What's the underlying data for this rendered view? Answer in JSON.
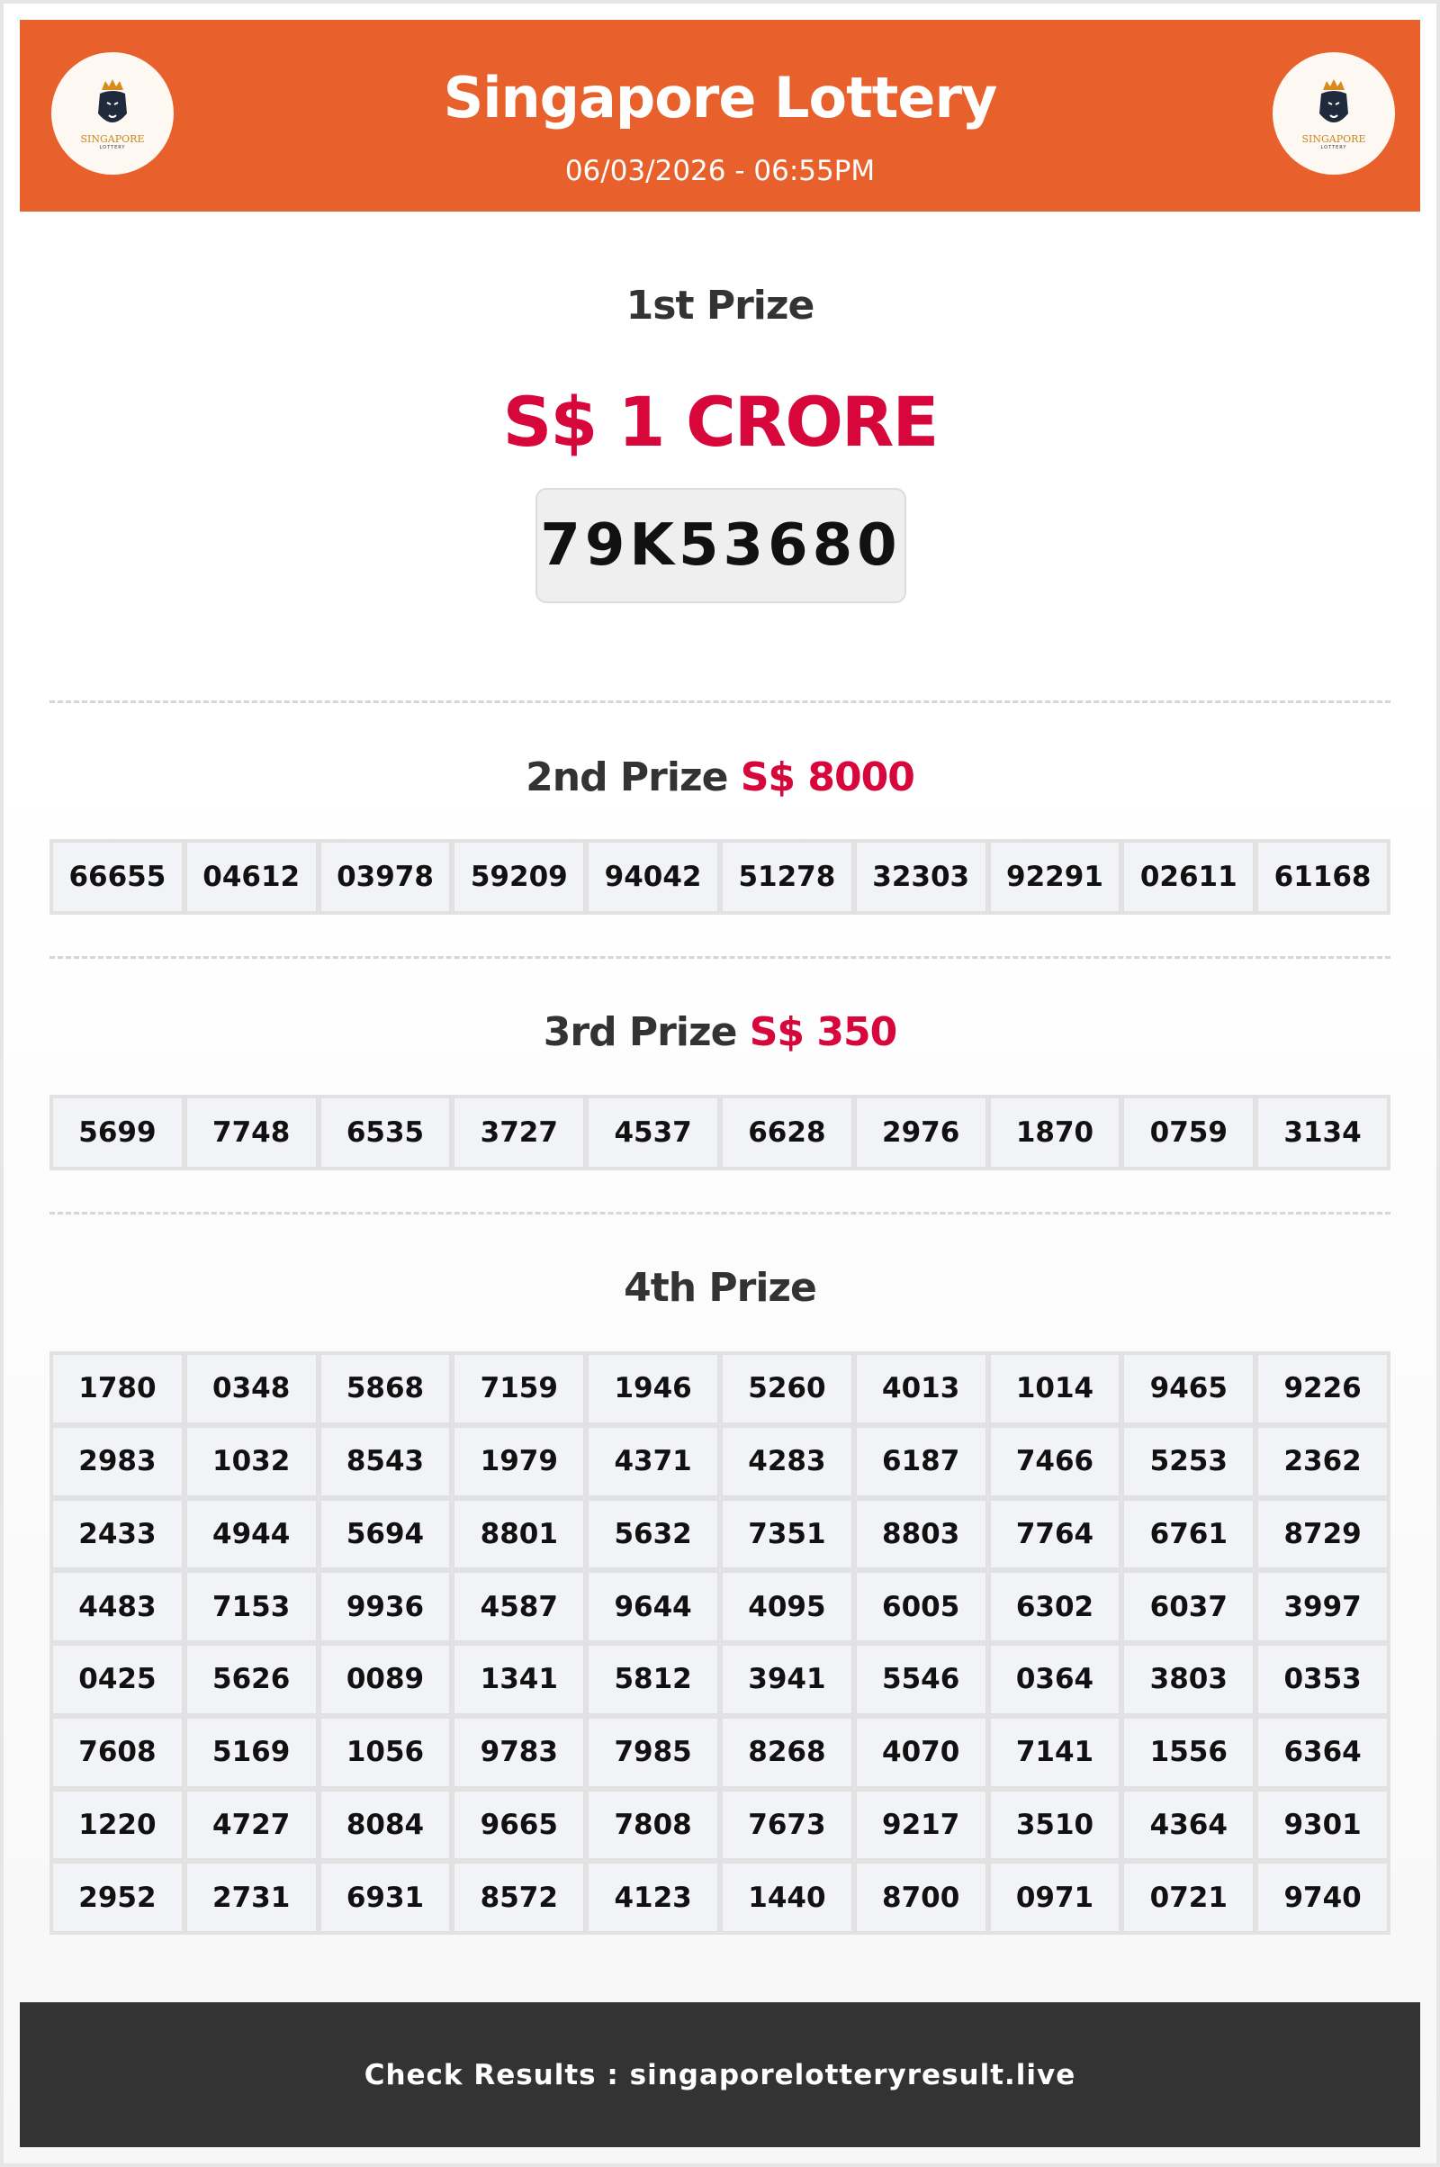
{
  "header": {
    "title": "Singapore Lottery",
    "datetime": "06/03/2026 - 06:55PM",
    "logo_text": "SINGAPORE",
    "logo_subtext": "LOTTERY",
    "background_color": "#E8602C"
  },
  "first_prize": {
    "heading": "1st Prize",
    "amount": "S$ 1 CRORE",
    "ticket": "79K53680",
    "accent_color": "#D7063B"
  },
  "second_prize": {
    "heading": "2nd Prize",
    "amount": "S$ 8000",
    "numbers": [
      "66655",
      "04612",
      "03978",
      "59209",
      "94042",
      "51278",
      "32303",
      "92291",
      "02611",
      "61168"
    ]
  },
  "third_prize": {
    "heading": "3rd Prize",
    "amount": "S$ 350",
    "numbers": [
      "5699",
      "7748",
      "6535",
      "3727",
      "4537",
      "6628",
      "2976",
      "1870",
      "0759",
      "3134"
    ]
  },
  "fourth_prize": {
    "heading": "4th Prize",
    "numbers": [
      "1780",
      "0348",
      "5868",
      "7159",
      "1946",
      "5260",
      "4013",
      "1014",
      "9465",
      "9226",
      "2983",
      "1032",
      "8543",
      "1979",
      "4371",
      "4283",
      "6187",
      "7466",
      "5253",
      "2362",
      "2433",
      "4944",
      "5694",
      "8801",
      "5632",
      "7351",
      "8803",
      "7764",
      "6761",
      "8729",
      "4483",
      "7153",
      "9936",
      "4587",
      "9644",
      "4095",
      "6005",
      "6302",
      "6037",
      "3997",
      "0425",
      "5626",
      "0089",
      "1341",
      "5812",
      "3941",
      "5546",
      "0364",
      "3803",
      "0353",
      "7608",
      "5169",
      "1056",
      "9783",
      "7985",
      "8268",
      "4070",
      "7141",
      "1556",
      "6364",
      "1220",
      "4727",
      "8084",
      "9665",
      "7808",
      "7673",
      "9217",
      "3510",
      "4364",
      "9301",
      "2952",
      "2731",
      "6931",
      "8572",
      "4123",
      "1440",
      "8700",
      "0971",
      "0721",
      "9740"
    ]
  },
  "footer": {
    "text": "Check Results : singaporelotteryresult.live"
  }
}
